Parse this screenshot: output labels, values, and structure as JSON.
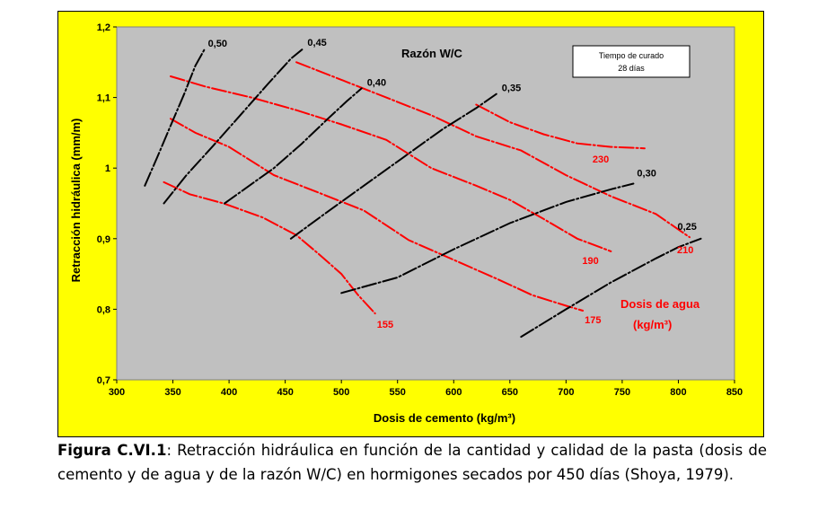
{
  "caption": {
    "label": "Figura C.VI.1",
    "text": ": Retracción hidráulica en función de la cantidad y calidad de la pasta (dosis de cemento y de agua y de la razón W/C) en hormigones secados por 450 días (Shoya, 1979)."
  },
  "chart_data": {
    "type": "line",
    "title": "",
    "xlabel": "Dosis de cemento (kg/m³)",
    "ylabel": "Retracción hidráulica (mm/m)",
    "xlim": [
      300,
      850
    ],
    "ylim": [
      0.7,
      1.2
    ],
    "xticks": [
      300,
      350,
      400,
      450,
      500,
      550,
      600,
      650,
      700,
      750,
      800,
      850
    ],
    "yticks": [
      0.7,
      0.8,
      0.9,
      1.0,
      1.1,
      1.2
    ],
    "xtick_labels": [
      "300",
      "350",
      "400",
      "450",
      "500",
      "550",
      "600",
      "650",
      "700",
      "750",
      "800",
      "850"
    ],
    "ytick_labels": [
      "0,7",
      "0,8",
      "0,9",
      "1",
      "1,1",
      "1,2"
    ],
    "grid": false,
    "colors": {
      "panel": "#ffff00",
      "plot": "#c0c0c0",
      "wc_lines": "#000000",
      "water_lines": "#ff0000"
    },
    "annotations": {
      "wc_group": "Razón W/C",
      "water_group_line1": "Dosis de agua",
      "water_group_line2": "(kg/m³)",
      "curing_line1": "Tiempo de curado",
      "curing_line2": "28 días"
    },
    "series_wc": [
      {
        "label": "0,50",
        "points": [
          [
            325,
            0.975
          ],
          [
            336,
            1.015
          ],
          [
            348,
            1.06
          ],
          [
            360,
            1.105
          ],
          [
            370,
            1.145
          ],
          [
            378,
            1.168
          ]
        ]
      },
      {
        "label": "0,45",
        "points": [
          [
            342,
            0.95
          ],
          [
            362,
            0.99
          ],
          [
            385,
            1.03
          ],
          [
            410,
            1.075
          ],
          [
            435,
            1.12
          ],
          [
            455,
            1.155
          ],
          [
            465,
            1.168
          ]
        ]
      },
      {
        "label": "0,40",
        "points": [
          [
            396,
            0.95
          ],
          [
            418,
            0.975
          ],
          [
            440,
            1.0
          ],
          [
            465,
            1.035
          ],
          [
            488,
            1.07
          ],
          [
            505,
            1.095
          ],
          [
            518,
            1.113
          ]
        ]
      },
      {
        "label": "0,35",
        "points": [
          [
            455,
            0.9
          ],
          [
            485,
            0.935
          ],
          [
            520,
            0.975
          ],
          [
            555,
            1.015
          ],
          [
            590,
            1.055
          ],
          [
            620,
            1.085
          ],
          [
            638,
            1.105
          ]
        ]
      },
      {
        "label": "0,30",
        "points": [
          [
            500,
            0.823
          ],
          [
            550,
            0.845
          ],
          [
            600,
            0.885
          ],
          [
            650,
            0.922
          ],
          [
            700,
            0.952
          ],
          [
            740,
            0.97
          ],
          [
            760,
            0.978
          ]
        ]
      },
      {
        "label": "0,25",
        "points": [
          [
            660,
            0.761
          ],
          [
            700,
            0.8
          ],
          [
            740,
            0.838
          ],
          [
            780,
            0.872
          ],
          [
            800,
            0.888
          ],
          [
            820,
            0.9
          ]
        ]
      }
    ],
    "series_water": [
      {
        "label": "155",
        "points": [
          [
            342,
            0.98
          ],
          [
            365,
            0.963
          ],
          [
            395,
            0.95
          ],
          [
            430,
            0.93
          ],
          [
            460,
            0.905
          ],
          [
            480,
            0.878
          ],
          [
            500,
            0.85
          ],
          [
            515,
            0.82
          ],
          [
            530,
            0.794
          ]
        ]
      },
      {
        "label": "175",
        "points": [
          [
            348,
            1.07
          ],
          [
            370,
            1.05
          ],
          [
            400,
            1.03
          ],
          [
            440,
            0.99
          ],
          [
            480,
            0.965
          ],
          [
            520,
            0.94
          ],
          [
            560,
            0.898
          ],
          [
            600,
            0.87
          ],
          [
            640,
            0.842
          ],
          [
            670,
            0.82
          ],
          [
            700,
            0.805
          ],
          [
            715,
            0.798
          ]
        ]
      },
      {
        "label": "190",
        "points": [
          [
            348,
            1.13
          ],
          [
            380,
            1.115
          ],
          [
            420,
            1.1
          ],
          [
            460,
            1.082
          ],
          [
            500,
            1.062
          ],
          [
            540,
            1.04
          ],
          [
            580,
            1.0
          ],
          [
            620,
            0.975
          ],
          [
            650,
            0.955
          ],
          [
            680,
            0.928
          ],
          [
            710,
            0.9
          ],
          [
            740,
            0.882
          ]
        ]
      },
      {
        "label": "210",
        "points": [
          [
            460,
            1.15
          ],
          [
            500,
            1.125
          ],
          [
            540,
            1.1
          ],
          [
            580,
            1.075
          ],
          [
            620,
            1.045
          ],
          [
            660,
            1.025
          ],
          [
            700,
            0.99
          ],
          [
            740,
            0.96
          ],
          [
            780,
            0.935
          ],
          [
            810,
            0.902
          ]
        ]
      },
      {
        "label": "230",
        "points": [
          [
            620,
            1.09
          ],
          [
            650,
            1.065
          ],
          [
            680,
            1.048
          ],
          [
            710,
            1.035
          ],
          [
            740,
            1.03
          ],
          [
            770,
            1.028
          ]
        ]
      }
    ]
  }
}
